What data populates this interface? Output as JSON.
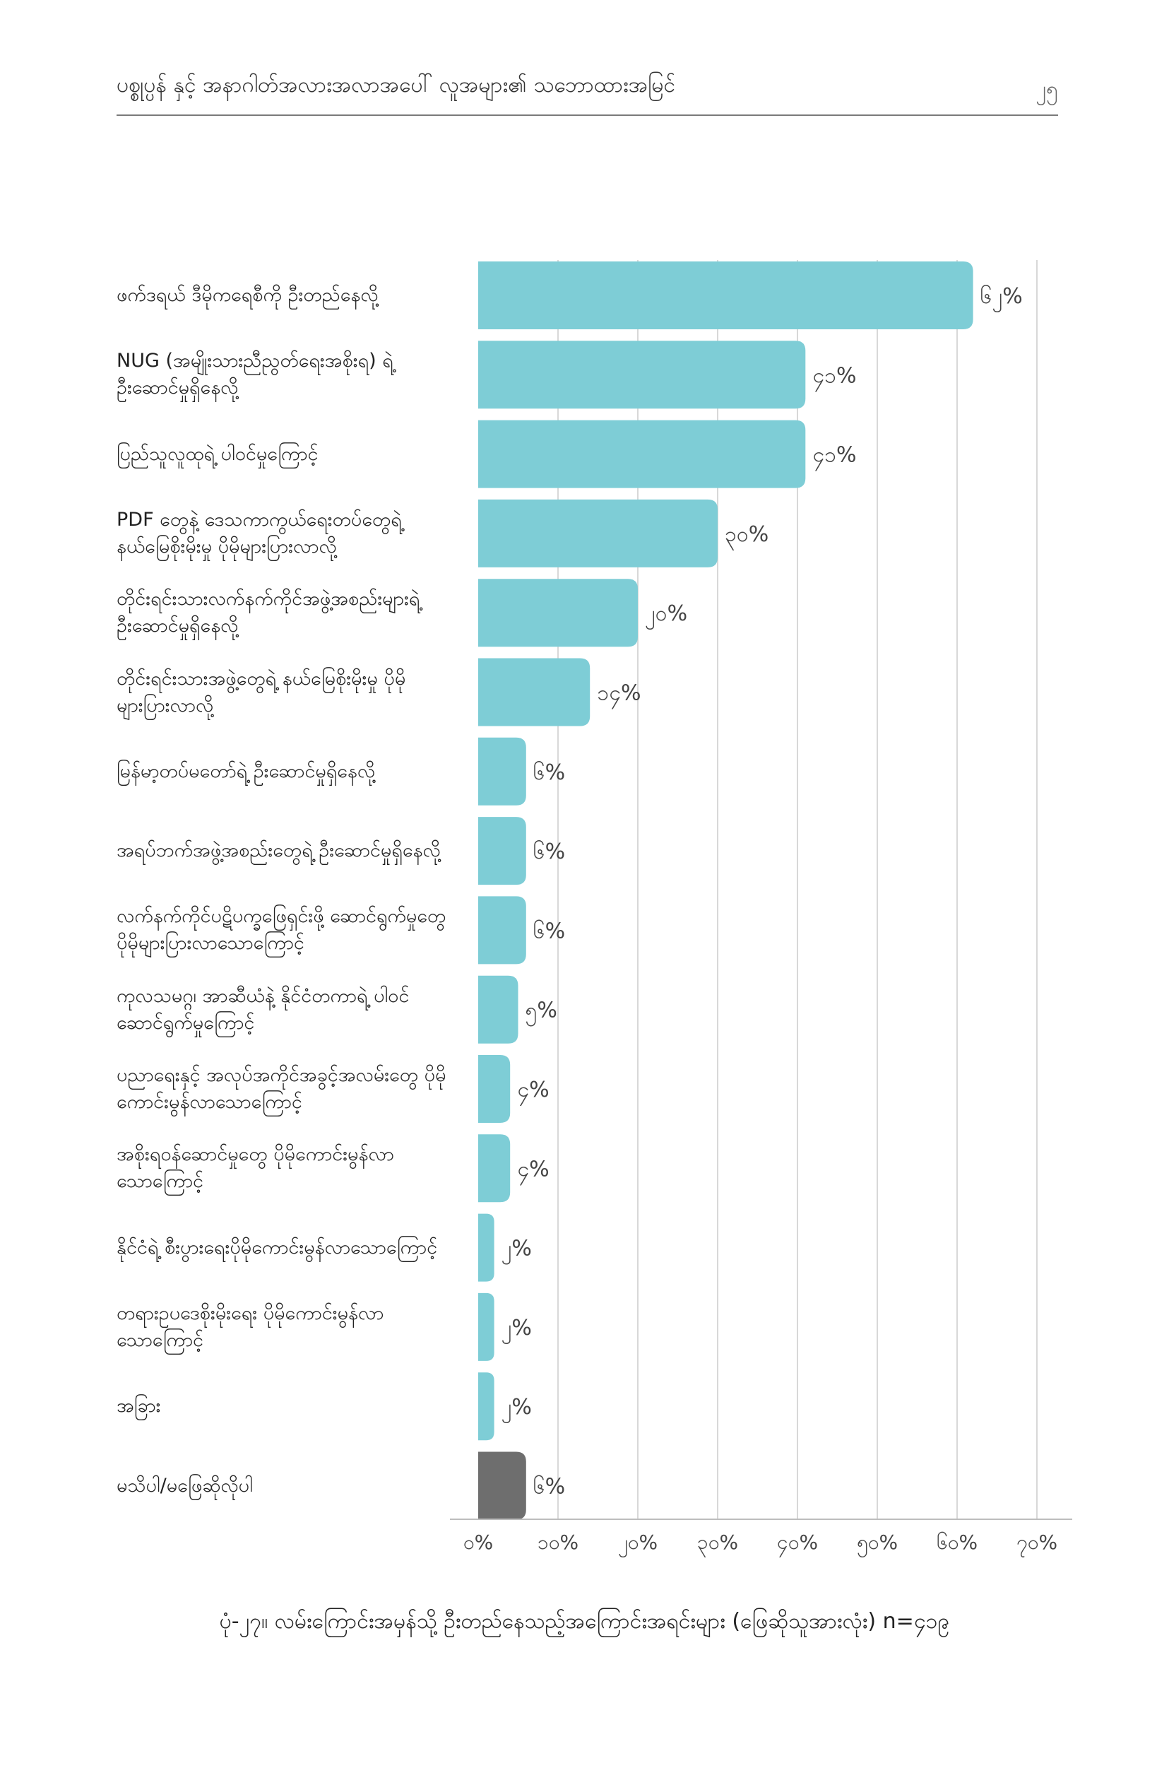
{
  "header": {
    "title": "ပစ္စုပ္ပန် နှင့် အနာဂါတ်အလားအလာအပေါ် လူအများ၏ သဘောထားအမြင်",
    "page_number": "၂၅"
  },
  "colors": {
    "bar": "#7ecdd6",
    "bar_other": "#6e6e6e",
    "grid": "#cccccc"
  },
  "chart_data": {
    "type": "bar",
    "orientation": "horizontal",
    "categories": [
      "ဖက်ဒရယ် ဒီမိုကရေစီကို ဦးတည်နေလို့",
      "NUG (အမျိုးသားညီညွတ်ရေးအစိုးရ) ရဲ့ ဦးဆောင်မှုရှိနေလို့",
      "ပြည်သူလူထုရဲ့ ပါဝင်မှုကြောင့်",
      "PDF တွေနဲ့ ဒေသကာကွယ်ရေးတပ်တွေရဲ့ နယ်မြေစိုးမိုးမှု ပိုမိုများပြားလာလို့",
      "တိုင်းရင်းသားလက်နက်ကိုင်အဖွဲ့အစည်းများရဲ့ ဦးဆောင်မှုရှိနေလို့",
      "တိုင်းရင်းသားအဖွဲ့တွေရဲ့ နယ်မြေစိုးမိုးမှု ပိုမိုများပြားလာလို့",
      "မြန်မာ့တပ်မတော်ရဲ့ ဦးဆောင်မှုရှိနေလို့",
      "အရပ်ဘက်အဖွဲ့အစည်းတွေရဲ့ ဦးဆောင်မှုရှိနေလို့",
      "လက်နက်ကိုင်ပဋိပက္ခဖြေရှင်းဖို့ ဆောင်ရွက်မှုတွေ ပိုမိုများပြားလာသောကြောင့်",
      "ကုလသမဂ္ဂ၊ အာဆီယံနဲ့ နိုင်ငံတကာရဲ့ ပါဝင်ဆောင်ရွက်မှုကြောင့်",
      "ပညာရေးနှင့် အလုပ်အကိုင်အခွင့်အလမ်းတွေ ပိုမိုကောင်းမွန်လာသောကြောင့်",
      "အစိုးရဝန်ဆောင်မှုတွေ ပိုမိုကောင်းမွန်လာသောကြောင့်",
      "နိုင်ငံရဲ့ စီးပွားရေးပိုမိုကောင်းမွန်လာသောကြောင့်",
      "တရားဥပဒေစိုးမိုးရေး ပိုမိုကောင်းမွန်လာသောကြောင့်",
      "အခြား",
      "မသိပါ/မဖြေဆိုလိုပါ"
    ],
    "values": [
      62,
      41,
      41,
      30,
      20,
      14,
      6,
      6,
      6,
      5,
      4,
      4,
      2,
      2,
      2,
      6
    ],
    "value_labels": [
      "၆၂%",
      "၄၁%",
      "၄၁%",
      "၃၀%",
      "၂၀%",
      "၁၄%",
      "၆%",
      "၆%",
      "၆%",
      "၅%",
      "၄%",
      "၄%",
      "၂%",
      "၂%",
      "၂%",
      "၆%"
    ],
    "highlight_index": 15,
    "xlim": [
      0,
      70
    ],
    "x_ticks": [
      0,
      10,
      20,
      30,
      40,
      50,
      60,
      70
    ],
    "x_tick_labels": [
      "၀%",
      "၁၀%",
      "၂၀%",
      "၃၀%",
      "၄၀%",
      "၅၀%",
      "၆၀%",
      "၇၀%"
    ],
    "grid": true,
    "legend": "none",
    "title": "ပုံ-၂၇။ လမ်းကြောင်းအမှန်သို့ ဦးတည်နေသည့်အကြောင်းအရင်းများ (ဖြေဆိုသူအားလုံး) n=၄၁၉"
  }
}
